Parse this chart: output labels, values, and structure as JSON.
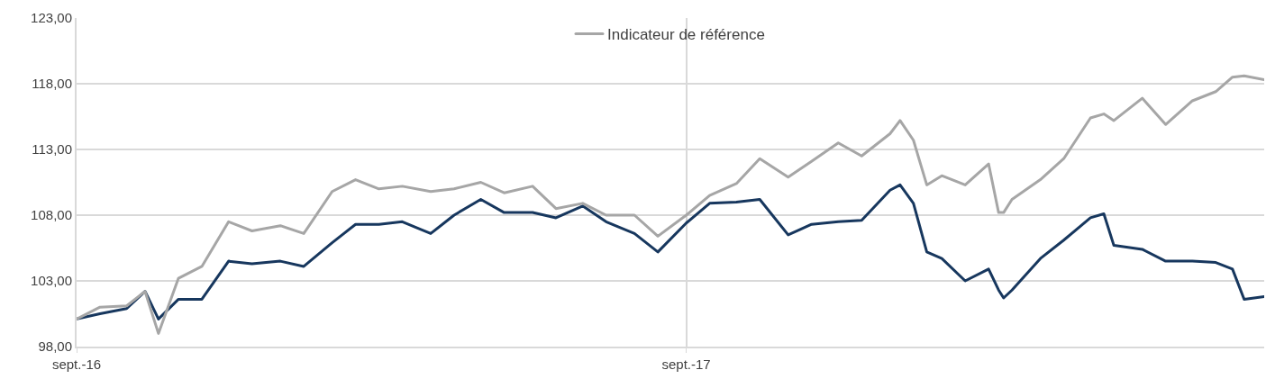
{
  "chart_data": {
    "type": "line",
    "x": [
      "2016-09-01",
      "2016-09-15",
      "2016-10-01",
      "2016-10-12",
      "2016-10-20",
      "2016-11-01",
      "2016-11-15",
      "2016-12-01",
      "2016-12-15",
      "2017-01-01",
      "2017-01-15",
      "2017-02-01",
      "2017-02-15",
      "2017-03-01",
      "2017-03-15",
      "2017-04-01",
      "2017-04-15",
      "2017-05-01",
      "2017-05-15",
      "2017-06-01",
      "2017-06-15",
      "2017-07-01",
      "2017-07-15",
      "2017-08-01",
      "2017-08-15",
      "2017-09-01",
      "2017-09-15",
      "2017-10-01",
      "2017-10-15",
      "2017-11-01",
      "2017-11-15",
      "2017-12-01",
      "2017-12-15",
      "2018-01-01",
      "2018-01-07",
      "2018-01-15",
      "2018-01-23",
      "2018-02-01",
      "2018-02-15",
      "2018-03-01",
      "2018-03-07",
      "2018-03-10",
      "2018-03-15",
      "2018-04-01",
      "2018-04-15",
      "2018-05-01",
      "2018-05-09",
      "2018-05-15",
      "2018-06-01",
      "2018-06-15",
      "2018-07-01",
      "2018-07-15",
      "2018-07-25",
      "2018-08-01",
      "2018-08-13"
    ],
    "series": [
      {
        "color": "#17375e",
        "values": [
          100.1,
          100.5,
          100.9,
          102.2,
          100.1,
          101.6,
          101.6,
          104.5,
          104.3,
          104.5,
          104.1,
          105.9,
          107.3,
          107.3,
          107.5,
          106.6,
          108.0,
          109.2,
          108.2,
          108.2,
          107.8,
          108.7,
          107.5,
          106.6,
          105.2,
          107.4,
          108.9,
          109.0,
          109.2,
          106.5,
          107.3,
          107.5,
          107.6,
          109.9,
          110.3,
          108.9,
          105.2,
          104.7,
          103.0,
          103.9,
          102.3,
          101.7,
          102.3,
          104.7,
          106.1,
          107.8,
          108.1,
          105.7,
          105.4,
          104.5,
          104.5,
          104.4,
          103.9,
          101.6,
          101.8
        ]
      },
      {
        "name": "Indicateur de référence",
        "color": "#a6a6a6",
        "values": [
          100.1,
          101.0,
          101.1,
          102.2,
          99.0,
          103.2,
          104.1,
          107.5,
          106.8,
          107.2,
          106.6,
          109.8,
          110.7,
          110.0,
          110.2,
          109.8,
          110.0,
          110.5,
          109.7,
          110.2,
          108.5,
          108.9,
          108.0,
          108.0,
          106.4,
          108.0,
          109.5,
          110.4,
          112.3,
          110.9,
          112.1,
          113.5,
          112.5,
          114.2,
          115.2,
          113.7,
          110.3,
          111.0,
          110.3,
          111.9,
          108.2,
          108.2,
          109.2,
          110.7,
          112.3,
          115.4,
          115.7,
          115.2,
          116.9,
          114.9,
          116.7,
          117.4,
          118.5,
          118.6,
          118.3
        ]
      }
    ],
    "xlim": [
      "2016-09-01",
      "2018-08-13"
    ],
    "xticks": [
      {
        "value": "2016-09-01",
        "label": "sept.-16"
      },
      {
        "value": "2017-09-01",
        "label": "sept.-17"
      }
    ],
    "ylim": [
      98,
      123
    ],
    "yticks": [
      {
        "value": 98,
        "label": "98,00"
      },
      {
        "value": 103,
        "label": "103,00"
      },
      {
        "value": 108,
        "label": "108,00"
      },
      {
        "value": 113,
        "label": "113,00"
      },
      {
        "value": 118,
        "label": "118,00"
      },
      {
        "value": 123,
        "label": "123,00"
      }
    ],
    "grid": true,
    "legend": "top",
    "marker": "none",
    "line_style": "solid"
  }
}
